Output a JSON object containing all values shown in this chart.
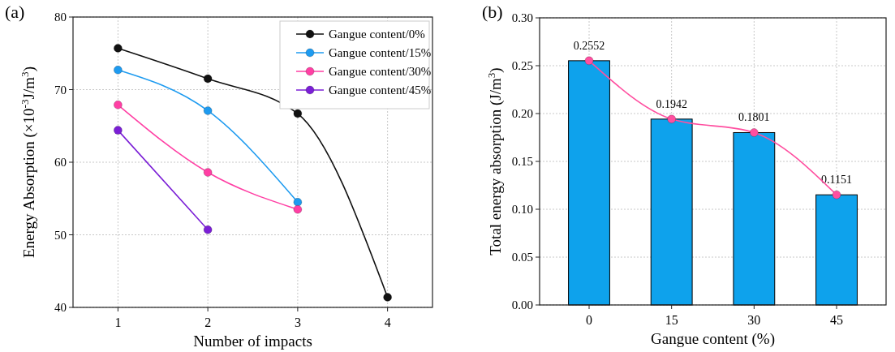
{
  "chart_data": [
    {
      "type": "line",
      "title": "(a)",
      "xlabel": "Number of impacts",
      "ylabel": "Energy Absorption (×10$^{-3}$J/m$^{3}$)",
      "x": [
        1,
        2,
        3,
        4
      ],
      "xlim": [
        0.5,
        4.5
      ],
      "xticks": [
        1,
        2,
        3,
        4
      ],
      "ylim": [
        40,
        80
      ],
      "yticks": [
        40,
        50,
        60,
        70,
        80
      ],
      "grid": true,
      "legend": "top right",
      "marker": "circle",
      "line_style": "solid",
      "series": [
        {
          "name": "Gangue content/0%",
          "color": "#111111",
          "values": [
            75.7,
            71.5,
            66.7,
            41.4
          ]
        },
        {
          "name": "Gangue content/15%",
          "color": "#1e9bf0",
          "x": [
            1,
            2,
            3
          ],
          "values": [
            72.7,
            67.1,
            54.5
          ]
        },
        {
          "name": "Gangue content/30%",
          "color": "#ff3fa4",
          "x": [
            1,
            2,
            3
          ],
          "values": [
            67.9,
            58.6,
            53.5
          ]
        },
        {
          "name": "Gangue content/45%",
          "color": "#7b1fd6",
          "x": [
            1,
            2
          ],
          "values": [
            64.4,
            50.7
          ]
        }
      ]
    },
    {
      "type": "bar",
      "title": "(b)",
      "xlabel": "Gangue content (%)",
      "ylabel": "Total energy absorption (J/m$^{3}$)",
      "categories": [
        "0",
        "15",
        "30",
        "45"
      ],
      "ylim": [
        0,
        0.3
      ],
      "yticks": [
        {
          "value": 0,
          "label": "0.00"
        },
        {
          "value": 0.05,
          "label": "0.05"
        },
        {
          "value": 0.1,
          "label": "0.10"
        },
        {
          "value": 0.15,
          "label": "0.15"
        },
        {
          "value": 0.2,
          "label": "0.20"
        },
        {
          "value": 0.25,
          "label": "0.25"
        },
        {
          "value": 0.3,
          "label": "0.30"
        }
      ],
      "grid": true,
      "legend": false,
      "series": [
        {
          "color": "#0ea2ec",
          "values": [
            0.2552,
            0.1942,
            0.1801,
            0.1151
          ],
          "value_labels": [
            "0.2552",
            "0.1942",
            "0.1801",
            "0.1151"
          ]
        },
        {
          "type": "line",
          "color": "#ff4fa0",
          "values": [
            0.2552,
            0.1942,
            0.1801,
            0.1151
          ],
          "marker": "circle"
        }
      ]
    }
  ]
}
